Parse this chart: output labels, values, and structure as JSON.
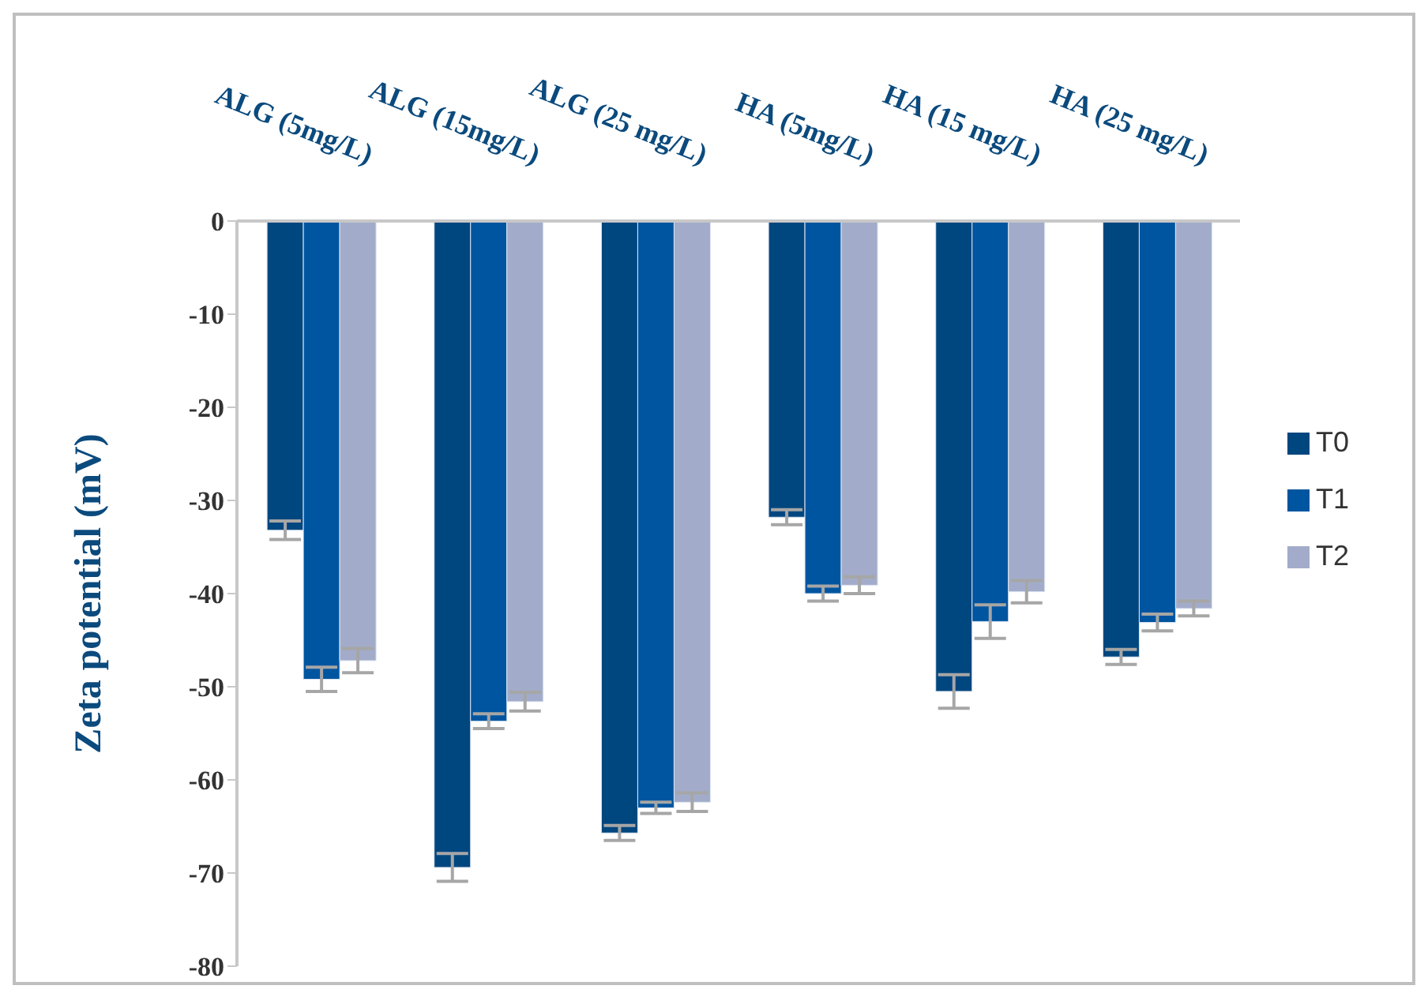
{
  "chart_data": {
    "type": "bar",
    "ylabel": "Zeta potential (mV)",
    "categories": [
      "ALG (5mg/L)",
      "ALG (15mg/L)",
      "ALG (25 mg/L)",
      "HA (5mg/L)",
      "HA (15 mg/L)",
      "HA (25 mg/L)"
    ],
    "series": [
      {
        "name": "T0",
        "color": "#00467f",
        "values": [
          -33.2,
          -69.4,
          -65.7,
          -31.8,
          -50.5,
          -46.8
        ],
        "errors": [
          1,
          1.5,
          0.8,
          0.8,
          1.8,
          0.8
        ]
      },
      {
        "name": "T1",
        "color": "#0055a0",
        "values": [
          -49.2,
          -53.7,
          -63,
          -40,
          -43,
          -43.1
        ],
        "errors": [
          1.3,
          0.8,
          0.6,
          0.8,
          1.8,
          0.9
        ]
      },
      {
        "name": "T2",
        "color": "#a2acca",
        "values": [
          -47.2,
          -51.6,
          -62.4,
          -39.1,
          -39.8,
          -41.6
        ],
        "errors": [
          1.3,
          1,
          1,
          0.9,
          1.2,
          0.8
        ]
      }
    ],
    "ylim": [
      -80,
      0
    ],
    "yticks": [
      0,
      -10,
      -20,
      -30,
      -40,
      -50,
      -60,
      -70,
      -80
    ],
    "legend": "right"
  }
}
